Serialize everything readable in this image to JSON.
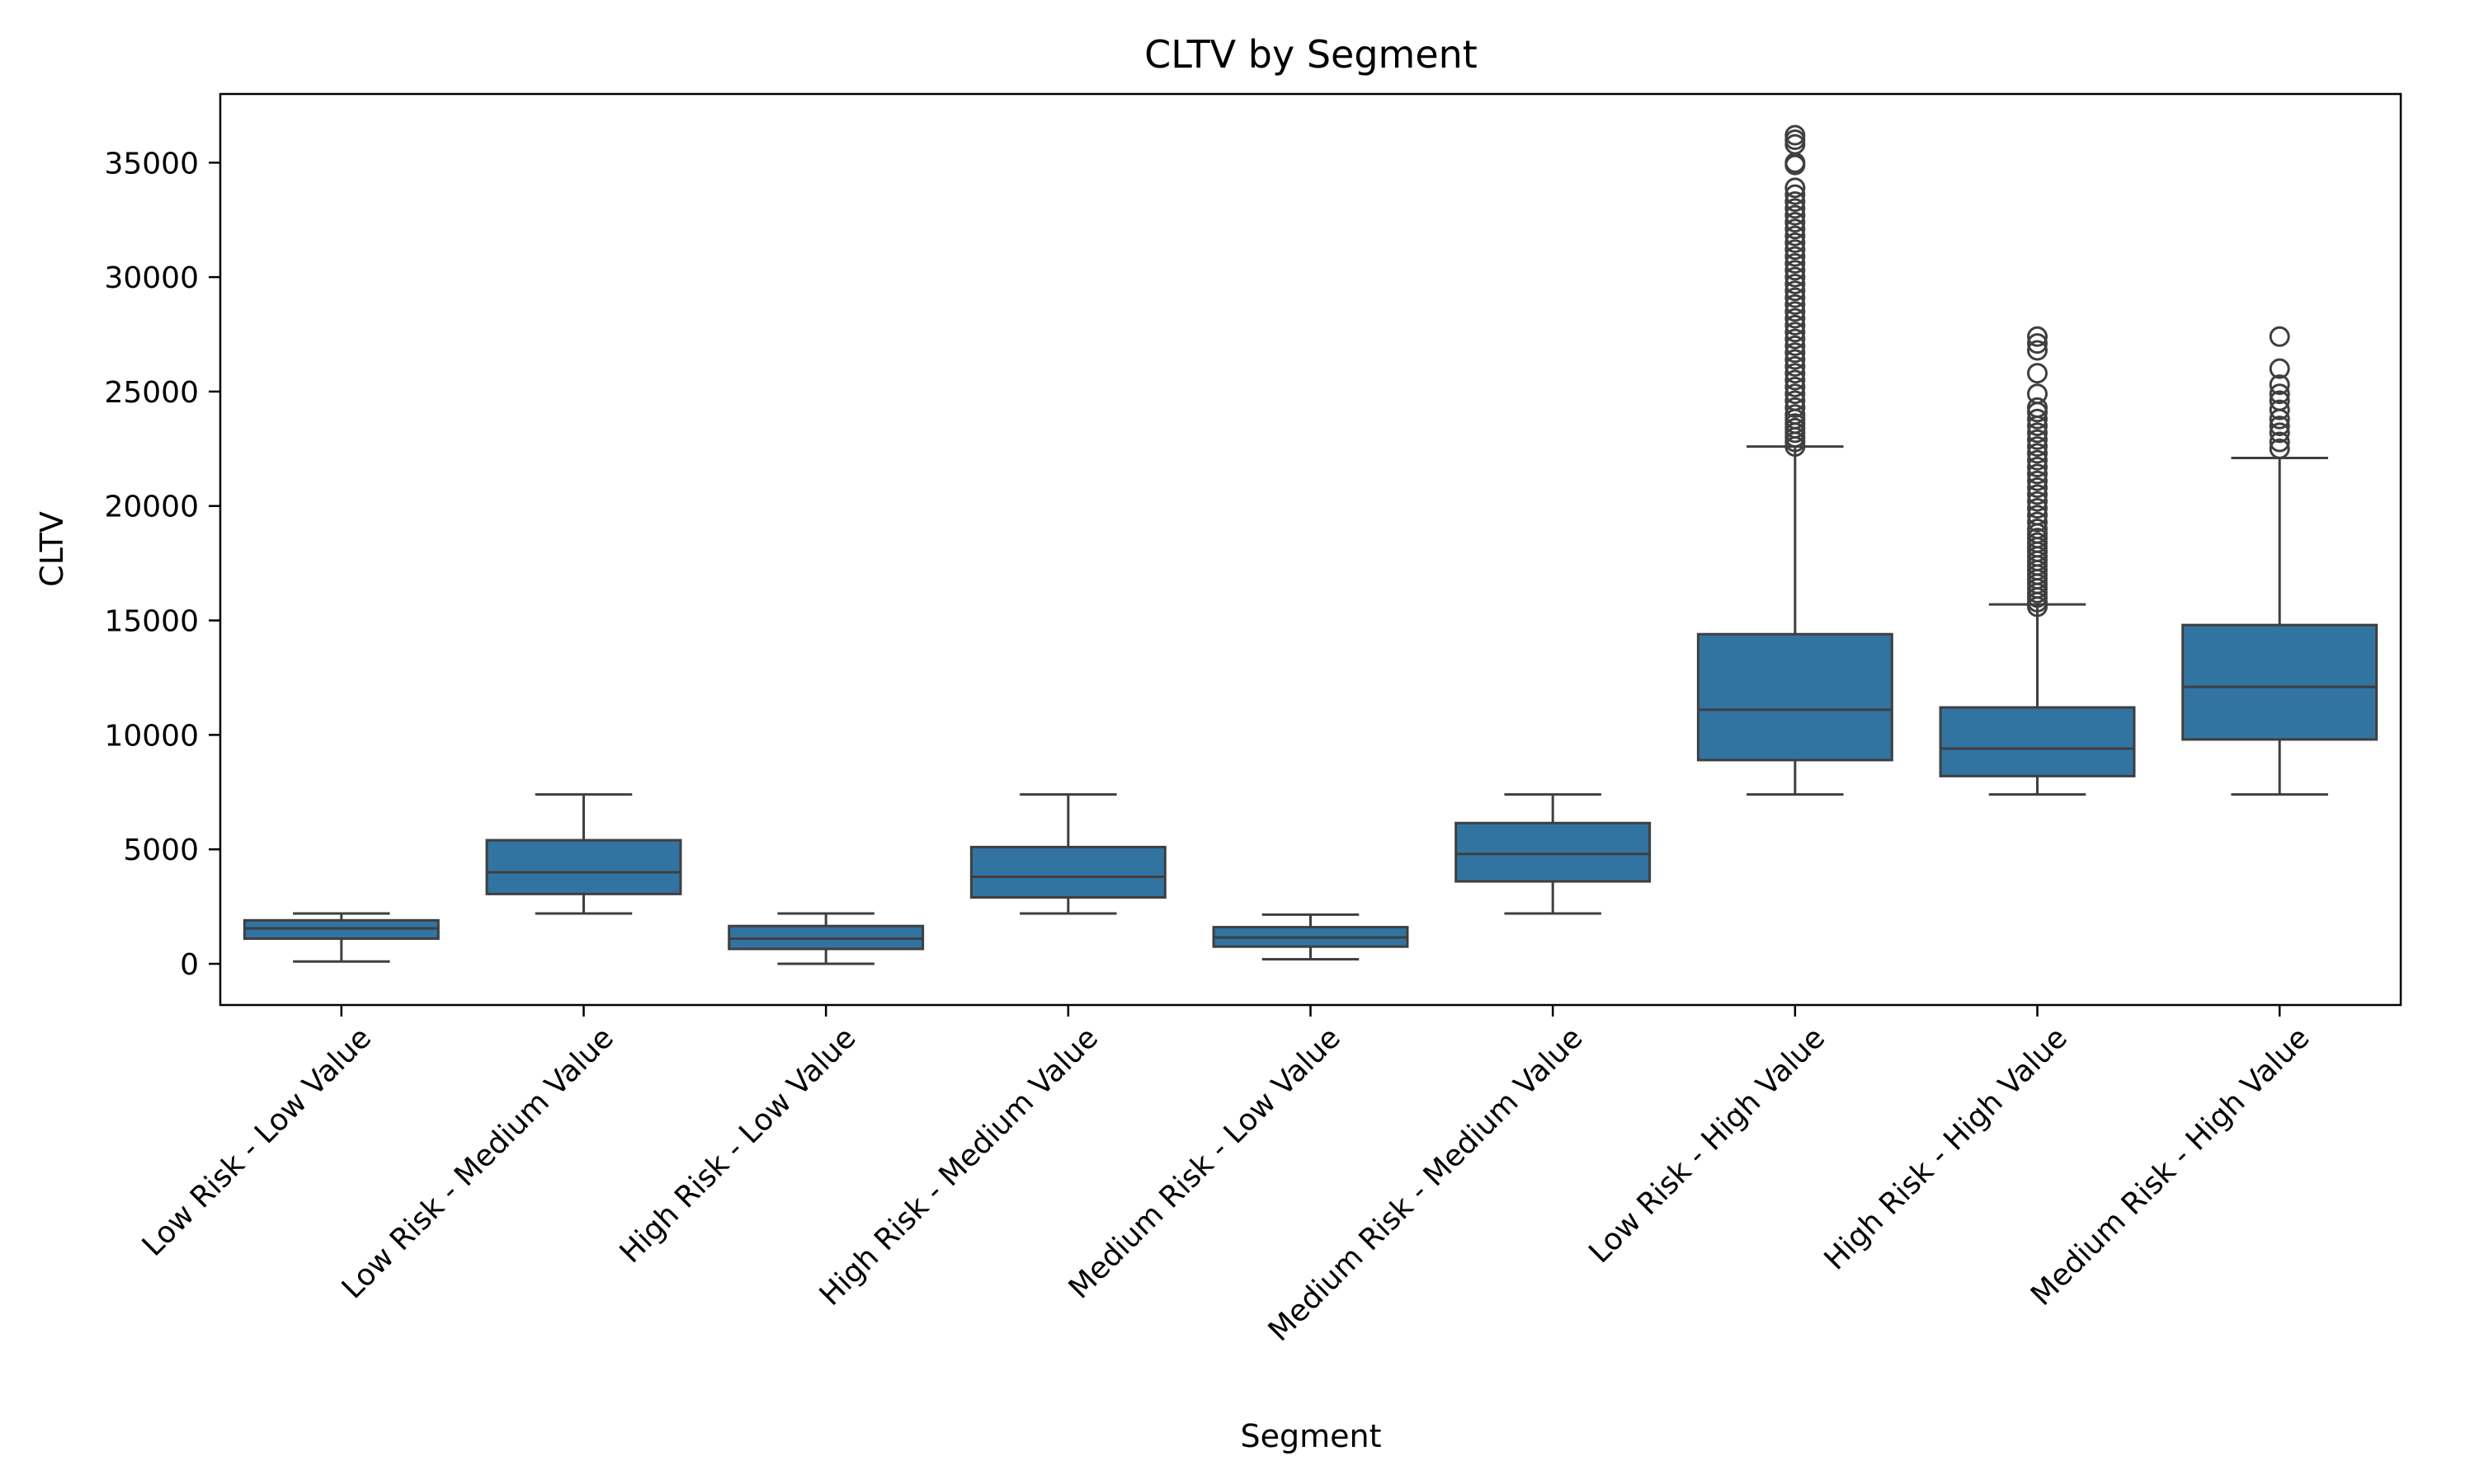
{
  "chart_data": {
    "type": "box",
    "title": "CLTV by Segment",
    "xlabel": "Segment",
    "ylabel": "CLTV",
    "ylim": [
      -1800,
      38000
    ],
    "yticks": [
      0,
      5000,
      10000,
      15000,
      20000,
      25000,
      30000,
      35000
    ],
    "grid": false,
    "box_color": "#3274a1",
    "line_color": "#3f3f3f",
    "categories": [
      "Low Risk - Low Value",
      "Low Risk - Medium Value",
      "High Risk - Low Value",
      "High Risk - Medium Value",
      "Medium Risk - Low Value",
      "Medium Risk - Medium Value",
      "Low Risk - High Value",
      "High Risk - High Value",
      "Medium Risk - High Value"
    ],
    "boxes": [
      {
        "whisker_low": 100,
        "q1": 1100,
        "median": 1550,
        "q3": 1900,
        "whisker_high": 2200,
        "outliers": []
      },
      {
        "whisker_low": 2200,
        "q1": 3050,
        "median": 4000,
        "q3": 5400,
        "whisker_high": 7400,
        "outliers": []
      },
      {
        "whisker_low": 0,
        "q1": 650,
        "median": 1100,
        "q3": 1650,
        "whisker_high": 2200,
        "outliers": []
      },
      {
        "whisker_low": 2200,
        "q1": 2900,
        "median": 3800,
        "q3": 5100,
        "whisker_high": 7400,
        "outliers": []
      },
      {
        "whisker_low": 200,
        "q1": 750,
        "median": 1150,
        "q3": 1600,
        "whisker_high": 2150,
        "outliers": []
      },
      {
        "whisker_low": 2200,
        "q1": 3600,
        "median": 4800,
        "q3": 6150,
        "whisker_high": 7400,
        "outliers": []
      },
      {
        "whisker_low": 7400,
        "q1": 8900,
        "median": 11100,
        "q3": 14400,
        "whisker_high": 22600,
        "outliers": [
          22600,
          22800,
          23000,
          23200,
          23400,
          23600,
          23800,
          24000,
          24300,
          24600,
          24900,
          25200,
          25500,
          25800,
          26100,
          26400,
          26700,
          27000,
          27300,
          27600,
          27900,
          28200,
          28500,
          28800,
          29100,
          29400,
          29700,
          30000,
          30300,
          30600,
          30900,
          31200,
          31500,
          31800,
          32100,
          32400,
          32700,
          33000,
          33300,
          33600,
          33900,
          34900,
          35000,
          35800,
          36000,
          36200
        ]
      },
      {
        "whisker_low": 7400,
        "q1": 8200,
        "median": 9400,
        "q3": 11200,
        "whisker_high": 15700,
        "outliers": [
          15600,
          15800,
          16000,
          16200,
          16400,
          16600,
          16800,
          17000,
          17200,
          17400,
          17600,
          17800,
          18000,
          18200,
          18400,
          18600,
          18800,
          19000,
          19300,
          19600,
          19900,
          20200,
          20500,
          20800,
          21100,
          21400,
          21700,
          22000,
          22300,
          22600,
          22900,
          23200,
          23500,
          23800,
          24100,
          24300,
          24900,
          25800,
          26800,
          27100,
          27400
        ]
      },
      {
        "whisker_low": 7400,
        "q1": 9800,
        "median": 12100,
        "q3": 14800,
        "whisker_high": 22100,
        "outliers": [
          22500,
          22800,
          23200,
          23500,
          23800,
          24200,
          24600,
          24900,
          25300,
          26000,
          27400
        ]
      }
    ]
  }
}
